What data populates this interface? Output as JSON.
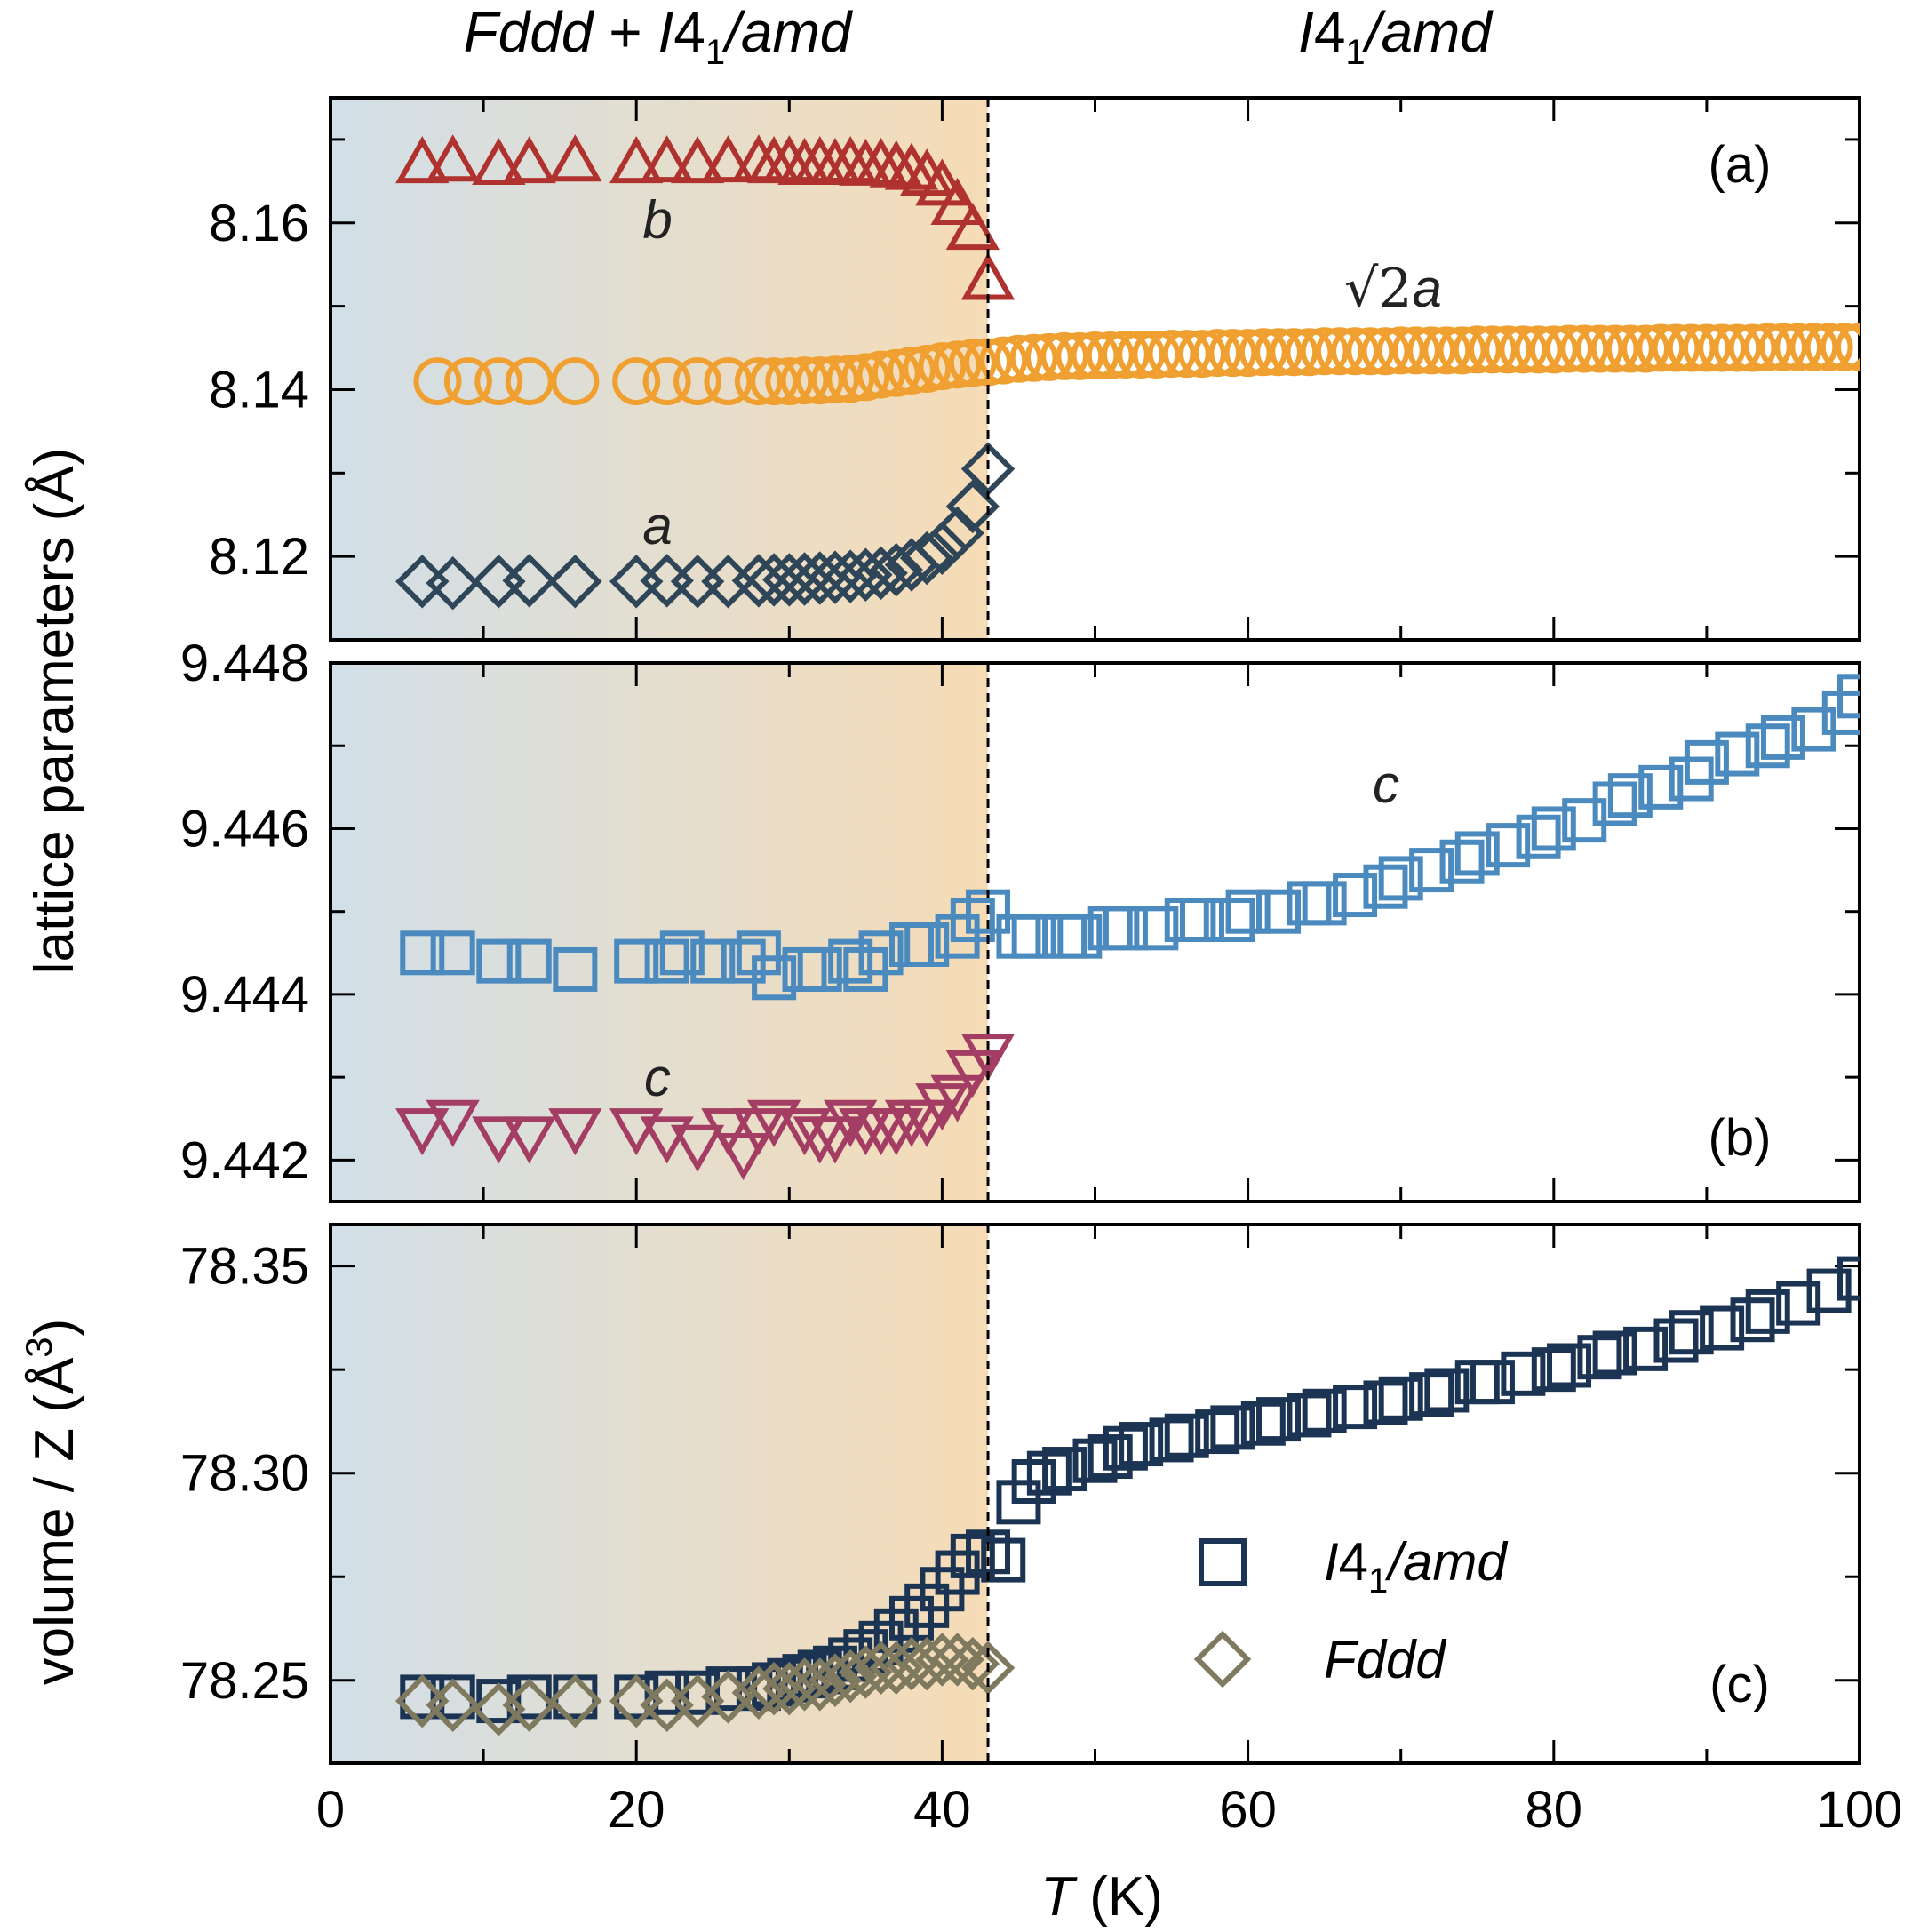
{
  "chart_data": [
    {
      "panel": "(a)",
      "type": "scatter",
      "xlabel": "T (K)",
      "ylabel": "lattice parameters (Å)",
      "xlim": [
        0,
        100
      ],
      "ylim": [
        8.11,
        8.175
      ],
      "yticks": [
        "8.12",
        "8.14",
        "8.16"
      ],
      "series": [
        {
          "name": "b",
          "marker": "triangle-up",
          "color": "#b0322f",
          "x": [
            6,
            8,
            11,
            13,
            16,
            20,
            22,
            24,
            26,
            28,
            29,
            30,
            31,
            32,
            33,
            34,
            35,
            36,
            37,
            38,
            39,
            40,
            41,
            42,
            43
          ],
          "y": [
            8.167,
            8.1672,
            8.1668,
            8.167,
            8.1672,
            8.167,
            8.1671,
            8.167,
            8.1671,
            8.1672,
            8.167,
            8.1671,
            8.1668,
            8.167,
            8.1668,
            8.167,
            8.1667,
            8.1668,
            8.1665,
            8.1662,
            8.1655,
            8.1643,
            8.162,
            8.159,
            8.153
          ]
        },
        {
          "name": "√2a",
          "marker": "circle",
          "color": "#f0a030",
          "x": [
            7,
            9,
            11,
            13,
            16,
            20,
            22,
            24,
            26,
            28,
            29,
            30,
            31,
            32,
            33,
            34,
            35,
            36,
            37,
            38,
            39,
            40,
            41,
            42,
            43,
            44,
            45,
            46,
            47,
            48,
            49,
            50,
            51,
            52,
            53,
            54,
            55,
            56,
            57,
            58,
            59,
            60,
            61,
            62,
            63,
            64,
            65,
            66,
            67,
            68,
            69,
            70,
            71,
            72,
            73,
            74,
            75,
            76,
            77,
            78,
            79,
            80,
            81,
            82,
            83,
            84,
            85,
            86,
            87,
            88,
            89,
            90,
            91,
            92,
            93,
            94,
            95,
            96,
            97,
            98,
            99,
            100
          ],
          "y": [
            8.141,
            8.141,
            8.141,
            8.141,
            8.141,
            8.141,
            8.141,
            8.141,
            8.141,
            8.141,
            8.141,
            8.141,
            8.1411,
            8.1411,
            8.1412,
            8.1413,
            8.1415,
            8.1418,
            8.142,
            8.1423,
            8.1425,
            8.1428,
            8.143,
            8.1432,
            8.1433,
            8.1435,
            8.1437,
            8.1438,
            8.1439,
            8.144,
            8.144,
            8.1441,
            8.1441,
            8.1442,
            8.1442,
            8.1442,
            8.1443,
            8.1443,
            8.1443,
            8.1444,
            8.1444,
            8.1444,
            8.1445,
            8.1445,
            8.1445,
            8.1445,
            8.1446,
            8.1446,
            8.1446,
            8.1446,
            8.1446,
            8.1447,
            8.1447,
            8.1447,
            8.1447,
            8.1447,
            8.1448,
            8.1448,
            8.1448,
            8.1448,
            8.1448,
            8.1448,
            8.1449,
            8.1449,
            8.1449,
            8.1449,
            8.1449,
            8.1449,
            8.145,
            8.145,
            8.145,
            8.145,
            8.145,
            8.145,
            8.145,
            8.1451,
            8.1451,
            8.1451,
            8.1451,
            8.1451,
            8.1451,
            8.1451
          ]
        },
        {
          "name": "a",
          "marker": "diamond",
          "color": "#2f4558",
          "x": [
            6,
            8,
            11,
            13,
            16,
            20,
            22,
            24,
            26,
            28,
            29,
            30,
            31,
            32,
            33,
            34,
            35,
            36,
            37,
            38,
            39,
            40,
            41,
            42,
            43
          ],
          "y": [
            8.117,
            8.1168,
            8.117,
            8.1171,
            8.117,
            8.117,
            8.1171,
            8.117,
            8.117,
            8.1171,
            8.1172,
            8.1172,
            8.1173,
            8.1174,
            8.1175,
            8.1176,
            8.1178,
            8.118,
            8.1184,
            8.119,
            8.1198,
            8.121,
            8.1228,
            8.126,
            8.1305
          ]
        }
      ],
      "annotations": [
        "b",
        "√2a",
        "a"
      ]
    },
    {
      "panel": "(b)",
      "type": "scatter",
      "xlabel": "T (K)",
      "ylabel": "lattice parameters (Å)",
      "xlim": [
        0,
        100
      ],
      "ylim": [
        9.4415,
        9.448
      ],
      "yticks": [
        "9.442",
        "9.444",
        "9.446",
        "9.448"
      ],
      "series": [
        {
          "name": "c (I41/amd)",
          "marker": "square",
          "color": "#4a8abf",
          "x": [
            6,
            8,
            11,
            13,
            16,
            20,
            22,
            23,
            25,
            27,
            28,
            29,
            31,
            32,
            34,
            35,
            36,
            38,
            39,
            41,
            42,
            43,
            45,
            46,
            48,
            49,
            51,
            52,
            54,
            56,
            57,
            59,
            60,
            62,
            64,
            65,
            67,
            69,
            70,
            72,
            74,
            75,
            77,
            79,
            80,
            82,
            84,
            85,
            87,
            89,
            90,
            92,
            94,
            95,
            97,
            99,
            100
          ],
          "y": [
            9.4445,
            9.4445,
            9.4444,
            9.4444,
            9.4443,
            9.4444,
            9.4444,
            9.4445,
            9.4444,
            9.4444,
            9.4445,
            9.4442,
            9.4443,
            9.4443,
            9.4444,
            9.4443,
            9.4445,
            9.4446,
            9.4446,
            9.4447,
            9.4449,
            9.445,
            9.4447,
            9.4447,
            9.4447,
            9.4447,
            9.4448,
            9.4448,
            9.4448,
            9.4449,
            9.4449,
            9.4449,
            9.445,
            9.445,
            9.4451,
            9.4451,
            9.4452,
            9.4453,
            9.4454,
            9.4455,
            9.4456,
            9.4457,
            9.4458,
            9.4459,
            9.446,
            9.4461,
            9.4463,
            9.4464,
            9.4465,
            9.4466,
            9.4468,
            9.4469,
            9.447,
            9.4471,
            9.4472,
            9.4474,
            9.4476
          ]
        },
        {
          "name": "c (Fddd)",
          "marker": "triangle-down",
          "color": "#a33d64",
          "x": [
            6,
            8,
            11,
            13,
            16,
            20,
            22,
            24,
            26,
            27,
            28,
            29,
            31,
            32,
            33,
            34,
            35,
            36,
            37,
            38,
            39,
            40,
            41,
            42,
            43
          ],
          "y": [
            9.4424,
            9.4425,
            9.4423,
            9.4423,
            9.4424,
            9.4424,
            9.4423,
            9.4422,
            9.4424,
            9.4421,
            9.4424,
            9.4425,
            9.4424,
            9.4423,
            9.4423,
            9.4425,
            9.4424,
            9.4424,
            9.4424,
            9.4425,
            9.4425,
            9.4427,
            9.4428,
            9.4431,
            9.4433
          ]
        }
      ],
      "annotations": [
        "c",
        "c"
      ]
    },
    {
      "panel": "(c)",
      "type": "scatter",
      "xlabel": "T (K)",
      "ylabel": "volume / Z (Å³)",
      "xlim": [
        0,
        100
      ],
      "ylim": [
        78.23,
        78.36
      ],
      "yticks": [
        "78.25",
        "78.30",
        "78.35"
      ],
      "xticks": [
        "0",
        "20",
        "40",
        "60",
        "80",
        "100"
      ],
      "series": [
        {
          "name": "I41/amd",
          "marker": "square",
          "color": "#1c3453",
          "x": [
            6,
            8,
            11,
            13,
            16,
            20,
            22,
            24,
            26,
            28,
            29,
            30,
            31,
            32,
            33,
            34,
            35,
            36,
            37,
            38,
            39,
            40,
            41,
            42,
            43,
            44,
            45,
            46,
            47,
            48,
            50,
            51,
            52,
            53,
            55,
            56,
            58,
            59,
            61,
            62,
            64,
            65,
            67,
            69,
            70,
            72,
            73,
            75,
            76,
            78,
            80,
            81,
            83,
            84,
            86,
            88,
            89,
            91,
            93,
            94,
            96,
            98,
            100
          ],
          "y": [
            78.246,
            78.246,
            78.245,
            78.246,
            78.246,
            78.246,
            78.247,
            78.247,
            78.248,
            78.248,
            78.249,
            78.25,
            78.251,
            78.252,
            78.253,
            78.255,
            78.257,
            78.259,
            78.262,
            78.265,
            78.268,
            78.272,
            78.276,
            78.28,
            78.281,
            78.279,
            78.293,
            78.298,
            78.3,
            78.301,
            78.303,
            78.304,
            78.306,
            78.307,
            78.308,
            78.309,
            78.31,
            78.311,
            78.312,
            78.313,
            78.314,
            78.315,
            78.316,
            78.317,
            78.318,
            78.319,
            78.32,
            78.322,
            78.322,
            78.324,
            78.325,
            78.326,
            78.328,
            78.329,
            78.33,
            78.332,
            78.334,
            78.335,
            78.337,
            78.339,
            78.341,
            78.344,
            78.347
          ]
        },
        {
          "name": "Fddd",
          "marker": "diamond",
          "color": "#7f7a5f",
          "x": [
            6,
            8,
            11,
            13,
            16,
            20,
            22,
            24,
            26,
            28,
            29,
            30,
            31,
            32,
            33,
            34,
            35,
            36,
            37,
            38,
            39,
            40,
            41,
            42,
            43
          ],
          "y": [
            78.245,
            78.244,
            78.243,
            78.244,
            78.245,
            78.245,
            78.244,
            78.245,
            78.246,
            78.247,
            78.248,
            78.248,
            78.249,
            78.249,
            78.25,
            78.251,
            78.252,
            78.253,
            78.253,
            78.254,
            78.254,
            78.255,
            78.255,
            78.254,
            78.253
          ]
        }
      ]
    }
  ],
  "figure": {
    "phase_left_main": "Fddd",
    "phase_left_plus": " + ",
    "phase_left_i": "I",
    "phase_left_4": "4",
    "phase_left_sub": "1",
    "phase_left_rest": "/amd",
    "phase_right_i": "I",
    "phase_right_4": "4",
    "phase_right_sub": "1",
    "phase_right_rest": "/amd",
    "ylabel_top": "lattice parameters (Å)",
    "ylabel_bottom_main": "volume / Z (Å",
    "ylabel_bottom_sup": "3",
    "ylabel_bottom_close": ")",
    "xlabel_T": "T",
    "xlabel_unit": " (K)",
    "panel_a": "(a)",
    "panel_b": "(b)",
    "panel_c": "(c)",
    "ann_b": "b",
    "ann_sqrt": "√2",
    "ann_sqrt_a": "a",
    "ann_a": "a",
    "ann_c_light": "c",
    "ann_c_fddd": "c",
    "legend_i41_i": "I",
    "legend_i41_4": "4",
    "legend_i41_sub": "1",
    "legend_i41_rest": "/amd",
    "legend_fddd": "Fddd",
    "transition_T": 43,
    "shade_color_left": "#d1dfe8",
    "shade_color_right": "#f6dcb6"
  }
}
